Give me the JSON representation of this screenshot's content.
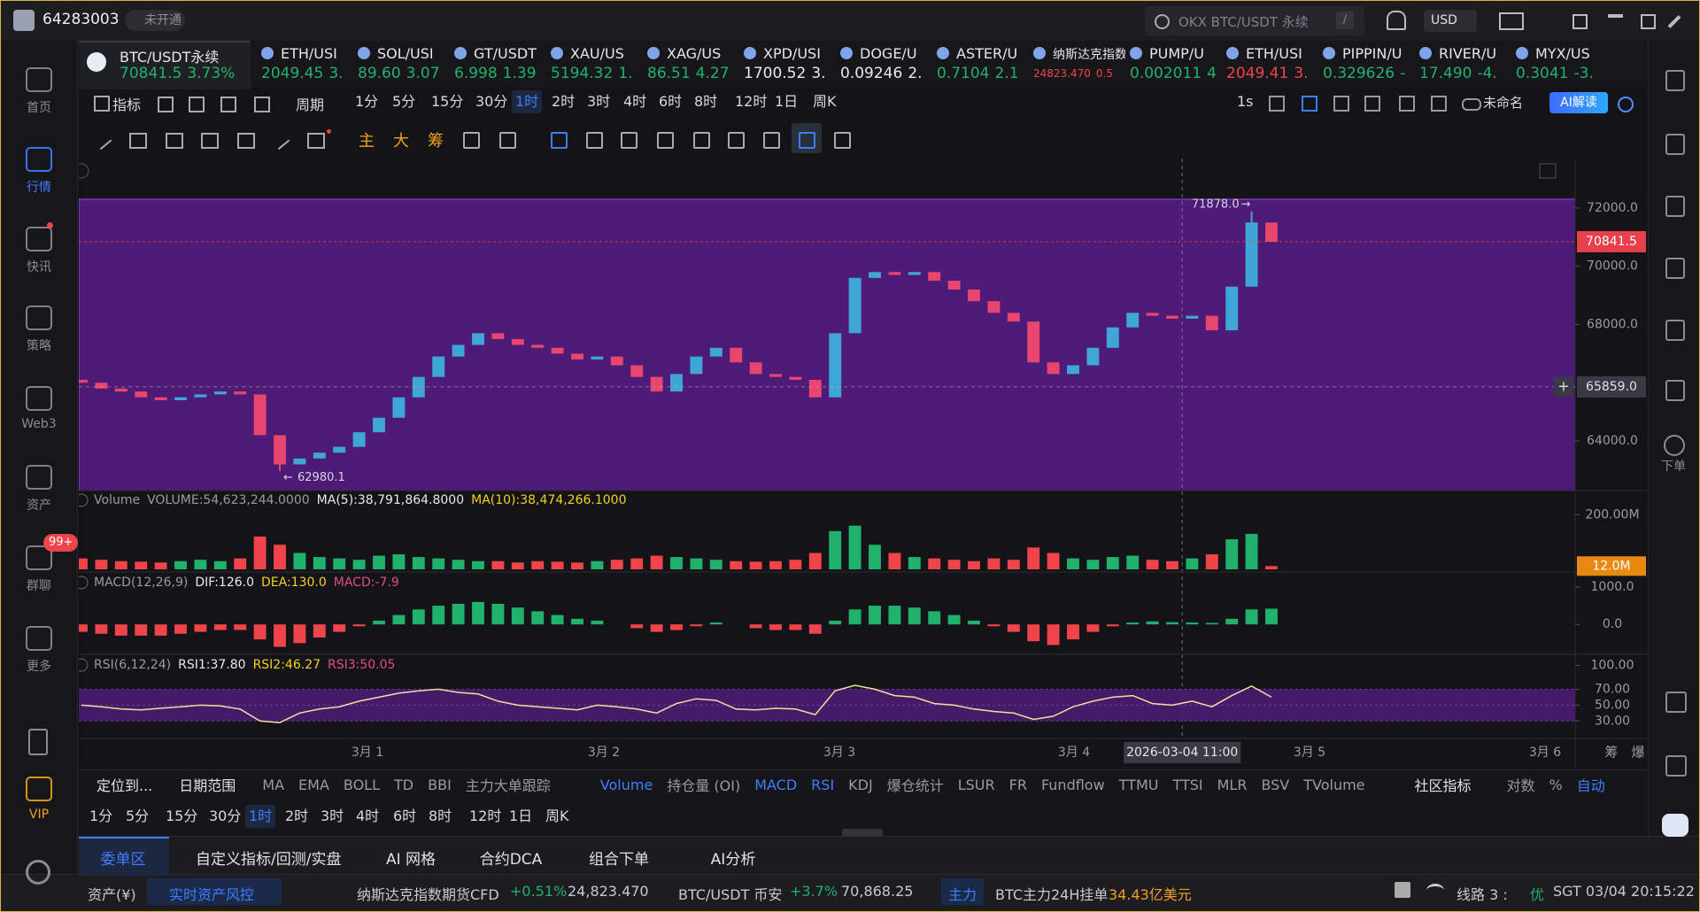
{
  "top_bar": {
    "user_id": "64283003",
    "status": "未开通",
    "search": "OKX BTC/USDT 永续",
    "search_key": "/",
    "currency": "USD"
  },
  "sidebar": [
    {
      "label": "首页"
    },
    {
      "label": "行情",
      "active": true
    },
    {
      "label": "快讯",
      "dot": true
    },
    {
      "label": "策略"
    },
    {
      "label": "Web3"
    },
    {
      "label": "资产"
    },
    {
      "label": "群聊",
      "badge": "99+"
    },
    {
      "label": "更多"
    },
    {
      "label": "VIP"
    }
  ],
  "right_sidebar": {
    "order": "下单"
  },
  "tickers": [
    {
      "symbol": "BTC/USDT永续",
      "price": "70841.5",
      "change": "3.73%",
      "color": "#20b26c"
    },
    {
      "symbol": "ETH/USI",
      "price": "2049.45",
      "change": "3.",
      "color": "#20b26c"
    },
    {
      "symbol": "SOL/USI",
      "price": "89.60",
      "change": "3.07",
      "color": "#20b26c"
    },
    {
      "symbol": "GT/USDT",
      "price": "6.998",
      "change": "1.39",
      "color": "#20b26c"
    },
    {
      "symbol": "XAU/US",
      "price": "5194.32",
      "change": "1.",
      "color": "#20b26c"
    },
    {
      "symbol": "XAG/US",
      "price": "86.51",
      "change": "4.27",
      "color": "#20b26c"
    },
    {
      "symbol": "XPD/USI",
      "price": "1700.52",
      "change": "3.",
      "color": "#e8e8ee"
    },
    {
      "symbol": "DOGE/U",
      "price": "0.09246",
      "change": "2.",
      "color": "#e8e8ee"
    },
    {
      "symbol": "ASTER/U",
      "price": "0.7104",
      "change": "2.1",
      "color": "#20b26c"
    },
    {
      "symbol": "纳斯达克指数",
      "price": "24823.470",
      "change": "0.5",
      "color": "#ef454a",
      "small": true
    },
    {
      "symbol": "PUMP/U",
      "price": "0.002011",
      "change": "4",
      "color": "#20b26c"
    },
    {
      "symbol": "ETH/USI",
      "price": "2049.41",
      "change": "3.",
      "color": "#ef454a"
    },
    {
      "symbol": "PIPPIN/U",
      "price": "0.329626",
      "change": "-",
      "color": "#20b26c"
    },
    {
      "symbol": "RIVER/U",
      "price": "17.490",
      "change": "-4.",
      "color": "#20b26c"
    },
    {
      "symbol": "MYX/US",
      "price": "0.3041",
      "change": "-3.",
      "color": "#20b26c"
    }
  ],
  "toolbar": {
    "indicators": "指标",
    "period": "周期",
    "intervals": [
      "1分",
      "5分",
      "15分",
      "30分",
      "1时",
      "2时",
      "3时",
      "4时",
      "6时",
      "8时",
      "12时",
      "1日",
      "周K"
    ],
    "active_interval": 4,
    "refresh": "1s",
    "layout_name": "未命名",
    "ai": "AI解读",
    "drawing_labels": [
      "主",
      "大",
      "筹"
    ]
  },
  "chart_data": {
    "type": "candlestick",
    "first_open": 66100,
    "closes": [
      66000,
      65800,
      65700,
      65500,
      65400,
      65500,
      65600,
      65700,
      65600,
      64200,
      63200,
      63400,
      63600,
      63800,
      64300,
      64800,
      65500,
      66200,
      66900,
      67300,
      67700,
      67500,
      67300,
      67200,
      67000,
      66800,
      66900,
      66600,
      66200,
      65700,
      66300,
      66900,
      67200,
      66700,
      66300,
      66200,
      66100,
      65500,
      67700,
      69600,
      69800,
      69700,
      69800,
      69500,
      69200,
      68800,
      68400,
      68100,
      66700,
      66300,
      66600,
      67200,
      67900,
      68400,
      68300,
      68200,
      68300,
      67800,
      69300,
      71500,
      70841.5
    ],
    "high": {
      "value": 71878,
      "label": "71878.0"
    },
    "low": {
      "value": 62980.1,
      "label": "62980.1"
    },
    "current_price": {
      "value": 70841.5,
      "label": "70841.5"
    },
    "crosshair_price": {
      "value": 65859,
      "label": "65859.0"
    },
    "crosshair_time": "2026-03-04 11:00",
    "ylim": [
      62300,
      72300
    ],
    "yticks": [
      {
        "value": 72000,
        "label": "72000.0"
      },
      {
        "value": 70000,
        "label": "70000.0"
      },
      {
        "value": 68000,
        "label": "68000.0"
      },
      {
        "value": 64000,
        "label": "64000.0"
      }
    ],
    "x_labels": [
      "3月 1",
      "3月 2",
      "3月 3",
      "3月 4",
      "3月 5",
      "3月 6"
    ],
    "axis_buttons": [
      "筹",
      "爆"
    ],
    "volume": {
      "title": "Volume",
      "legend": [
        "VOLUME:54,623,244.0000",
        "MA(5):38,791,864.8000",
        "MA(10):38,474,266.1000"
      ],
      "values": [
        40,
        35,
        30,
        28,
        25,
        30,
        35,
        30,
        40,
        120,
        90,
        60,
        45,
        40,
        35,
        50,
        55,
        45,
        40,
        35,
        30,
        30,
        25,
        30,
        28,
        25,
        30,
        35,
        40,
        50,
        45,
        40,
        35,
        30,
        28,
        30,
        35,
        60,
        140,
        160,
        90,
        60,
        45,
        40,
        35,
        30,
        40,
        35,
        80,
        60,
        40,
        35,
        45,
        50,
        35,
        30,
        40,
        55,
        110,
        130,
        12
      ],
      "ylim": [
        0,
        240
      ],
      "yticks": [
        {
          "value": 200,
          "label": "200.00M"
        }
      ],
      "current": {
        "value": 12,
        "label": "12.0M"
      }
    },
    "macd": {
      "title": "MACD(12,26,9)",
      "legend": [
        "DIF:126.0",
        "DEA:130.0",
        "MACD:-7.9"
      ],
      "values": [
        -200,
        -250,
        -300,
        -300,
        -300,
        -250,
        -200,
        -150,
        -150,
        -400,
        -600,
        -500,
        -350,
        -200,
        -50,
        100,
        250,
        400,
        500,
        550,
        600,
        550,
        450,
        350,
        250,
        150,
        100,
        0,
        -100,
        -200,
        -150,
        -50,
        50,
        0,
        -100,
        -150,
        -150,
        -250,
        100,
        400,
        500,
        500,
        450,
        350,
        250,
        100,
        -50,
        -200,
        -450,
        -550,
        -400,
        -200,
        -50,
        50,
        80,
        60,
        50,
        40,
        150,
        400,
        420
      ],
      "ylim": [
        -800,
        1400
      ],
      "yticks": [
        {
          "value": 1000,
          "label": "1000.0"
        },
        {
          "value": 0,
          "label": "0.0"
        }
      ]
    },
    "rsi": {
      "title": "RSI(6,12,24)",
      "legend": [
        "RSI1:37.80",
        "RSI2:46.27",
        "RSI3:50.05"
      ],
      "values": [
        50,
        48,
        45,
        44,
        46,
        48,
        50,
        49,
        45,
        30,
        28,
        40,
        45,
        48,
        55,
        60,
        65,
        68,
        70,
        66,
        64,
        55,
        50,
        48,
        46,
        44,
        50,
        48,
        45,
        40,
        52,
        58,
        56,
        45,
        44,
        46,
        45,
        38,
        68,
        75,
        70,
        62,
        60,
        52,
        50,
        45,
        42,
        40,
        32,
        36,
        48,
        55,
        60,
        62,
        52,
        50,
        55,
        48,
        62,
        74,
        60
      ],
      "ylim": [
        8,
        114
      ],
      "yticks": [
        {
          "value": 100,
          "label": "100.00"
        },
        {
          "value": 70,
          "label": "70.00"
        },
        {
          "value": 50,
          "label": "50.00"
        },
        {
          "value": 30,
          "label": "30.00"
        }
      ]
    }
  },
  "indicator_bar": {
    "locate": "定位到...",
    "date_range": "日期范围",
    "main": [
      {
        "label": "MA"
      },
      {
        "label": "EMA"
      },
      {
        "label": "BOLL"
      },
      {
        "label": "TD"
      },
      {
        "label": "BBI"
      },
      {
        "label": "主力大单跟踪"
      }
    ],
    "sub": [
      {
        "label": "Volume",
        "active": true
      },
      {
        "label": "持仓量 (OI)"
      },
      {
        "label": "MACD",
        "active": true
      },
      {
        "label": "RSI",
        "active": true
      },
      {
        "label": "KDJ"
      },
      {
        "label": "爆仓统计"
      },
      {
        "label": "LSUR"
      },
      {
        "label": "FR"
      },
      {
        "label": "Fundflow"
      },
      {
        "label": "TTMU"
      },
      {
        "label": "TTSI"
      },
      {
        "label": "MLR"
      },
      {
        "label": "BSV"
      },
      {
        "label": "TVolume"
      }
    ],
    "community": "社区指标",
    "log": "对数",
    "percent": "%",
    "auto": "自动"
  },
  "bottom_tabs": [
    "委单区",
    "自定义指标/回测/实盘",
    "AI 网格",
    "合约DCA",
    "组合下单",
    "AI分析"
  ],
  "status_bar": {
    "assets": "资产(¥)",
    "risk": "实时资产风控",
    "nasdaq": "纳斯达克指数期货CFD",
    "nasdaq_change": "+0.51%",
    "nasdaq_price": "24,823.470",
    "btc": "BTC/USDT 币安",
    "btc_change": "+3.7%",
    "btc_price": "70,868.25",
    "main_force": "主力",
    "order_label": "BTC主力24H挂单",
    "order_value": "34.43亿美元",
    "line": "线路 3 : ",
    "line_quality": "优",
    "time": "SGT 03/04 20:15:22"
  }
}
